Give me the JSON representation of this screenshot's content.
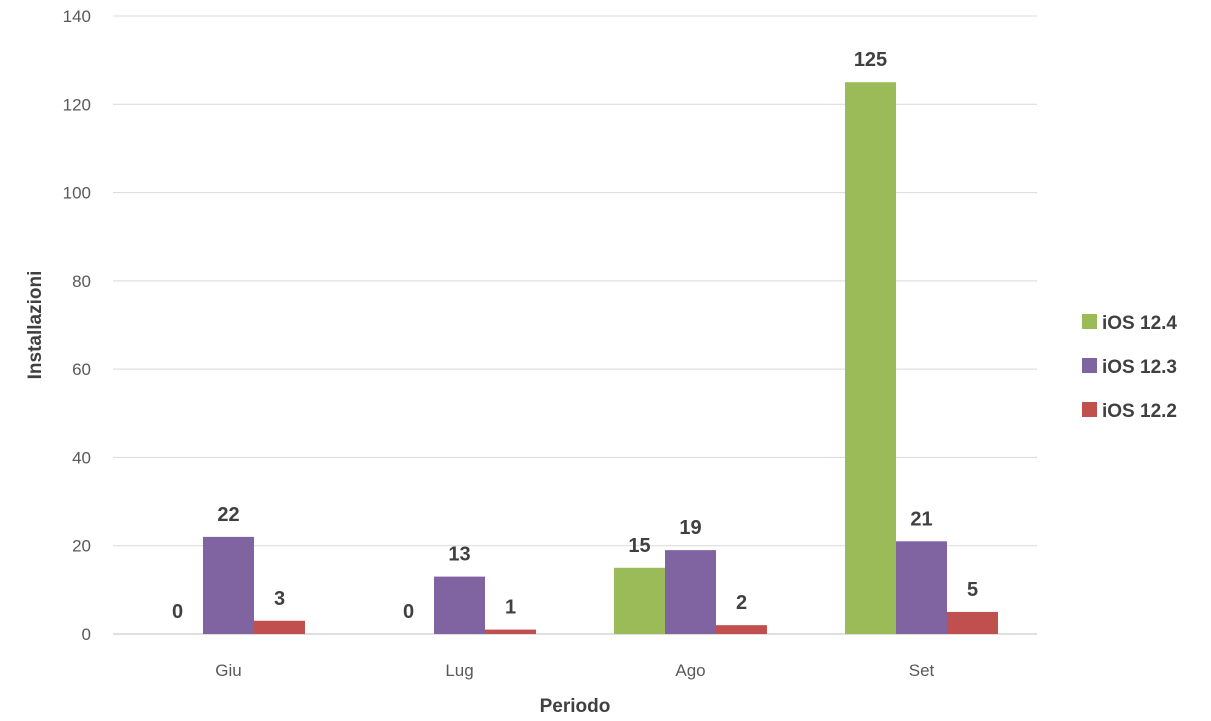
{
  "chart_data": {
    "type": "bar",
    "title": "",
    "xlabel": "Periodo",
    "ylabel": "Installazioni",
    "categories": [
      "Giu",
      "Lug",
      "Ago",
      "Set"
    ],
    "series": [
      {
        "name": "iOS 12.4",
        "color": "#9BBB59",
        "values": [
          0,
          0,
          15,
          125
        ]
      },
      {
        "name": "iOS 12.3",
        "color": "#8064A2",
        "values": [
          22,
          13,
          19,
          21
        ]
      },
      {
        "name": "iOS 12.2",
        "color": "#C0504D",
        "values": [
          3,
          1,
          2,
          5
        ]
      }
    ],
    "ylim": [
      0,
      140
    ],
    "yticks": [
      0,
      20,
      40,
      60,
      80,
      100,
      120,
      140
    ],
    "grid": true,
    "legend": "right",
    "data_labels": true
  }
}
